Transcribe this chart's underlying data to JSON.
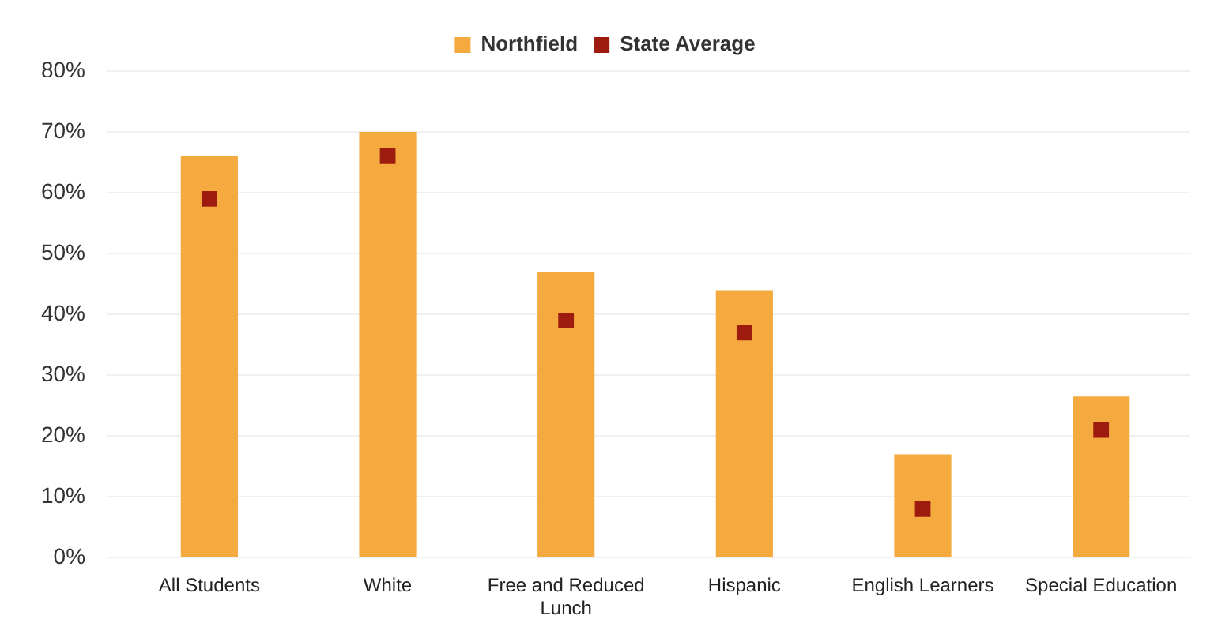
{
  "chart_data": {
    "type": "bar",
    "categories": [
      "All Students",
      "White",
      "Free and Reduced Lunch",
      "Hispanic",
      "English Learners",
      "Special Education"
    ],
    "series": [
      {
        "name": "Northfield",
        "color": "#f5aa3f",
        "values": [
          66,
          70,
          47,
          44,
          17,
          26.5
        ]
      },
      {
        "name": "State Average",
        "type": "scatter",
        "color": "#9e1b10",
        "x": [
          "All Students",
          "White",
          "Free and Reduced Lunch",
          "Hispanic",
          "English Learners",
          "Special Education"
        ],
        "values": [
          59,
          66,
          39,
          37,
          8,
          21
        ]
      }
    ],
    "ylim": [
      0,
      80
    ],
    "yticks": [
      {
        "value": 0,
        "label": "0%"
      },
      {
        "value": 10,
        "label": "10%"
      },
      {
        "value": 20,
        "label": "20%"
      },
      {
        "value": 30,
        "label": "30%"
      },
      {
        "value": 40,
        "label": "40%"
      },
      {
        "value": 50,
        "label": "50%"
      },
      {
        "value": 60,
        "label": "60%"
      },
      {
        "value": 70,
        "label": "70%"
      },
      {
        "value": 80,
        "label": "80%"
      }
    ],
    "grid": "y",
    "legend": "top",
    "marker": "square"
  }
}
